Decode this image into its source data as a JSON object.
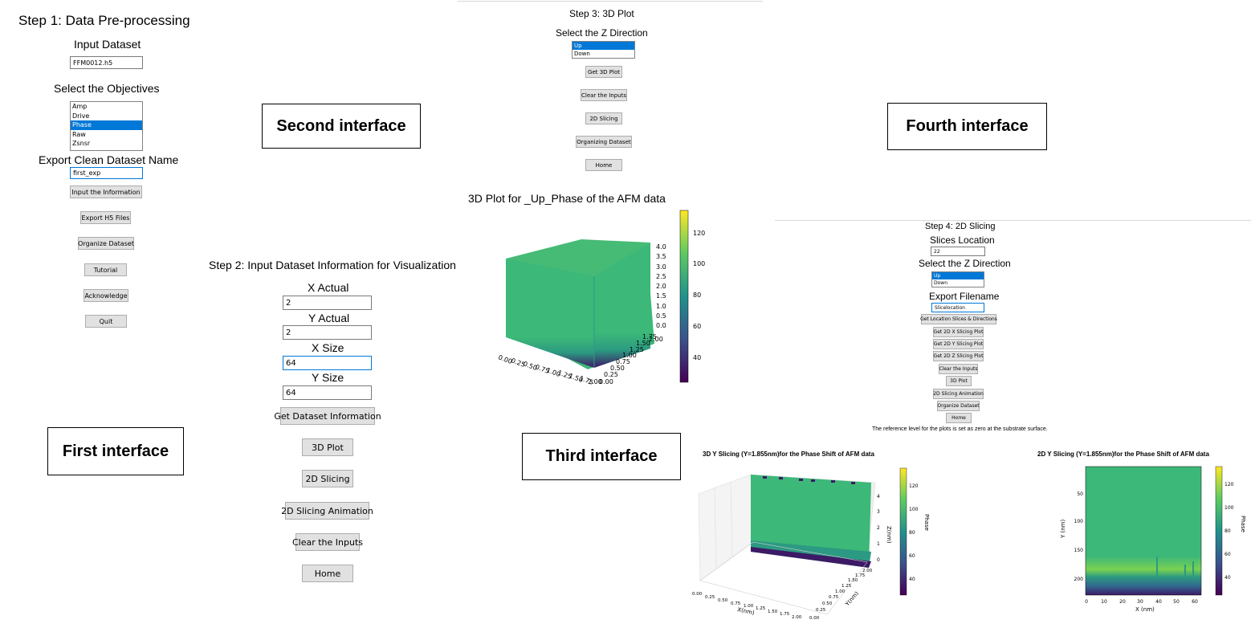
{
  "colors": {
    "viridis_low": "#440154",
    "viridis_mid": "#21918c",
    "viridis_high": "#fde725",
    "plot_green": "#3cb878",
    "selection": "#0078d7"
  },
  "callouts": {
    "first": "First interface",
    "second": "Second interface",
    "third": "Third interface",
    "fourth": "Fourth interface"
  },
  "first": {
    "title": "Step 1: Data Pre-processing",
    "input_dataset_label": "Input Dataset",
    "input_dataset_value": "FFM0012.h5",
    "objectives_label": "Select the Objectives",
    "objectives": [
      "Amp",
      "Drive",
      "Phase",
      "Raw",
      "Zsnsr"
    ],
    "objectives_selected": "Phase",
    "export_label": "Export Clean Dataset Name",
    "export_value": "first_exp",
    "buttons": {
      "input_info": "Input the Information",
      "export_h5": "Export H5 Files",
      "organize": "Organize Dataset",
      "tutorial": "Tutorial",
      "acknowledge": "Acknowledge",
      "quit": "Quit"
    }
  },
  "second": {
    "title": "Step 2: Input Dataset Information for Visualization",
    "x_actual_label": "X Actual",
    "x_actual_value": "2",
    "y_actual_label": "Y Actual",
    "y_actual_value": "2",
    "x_size_label": "X Size",
    "x_size_value": "64",
    "y_size_label": "Y Size",
    "y_size_value": "64",
    "buttons": {
      "get_info": "Get Dataset Information",
      "plot3d": "3D Plot",
      "slicing2d": "2D Slicing",
      "animation": "2D Slicing Animation",
      "clear": "Clear the Inputs",
      "home": "Home"
    }
  },
  "third": {
    "title": "Step 3: 3D Plot",
    "direction_label": "Select the Z Direction",
    "directions": [
      "Up",
      "Down"
    ],
    "direction_selected": "Up",
    "buttons": {
      "get3d": "Get 3D Plot",
      "clear": "Clear the Inputs",
      "slicing": "2D Slicing",
      "organize": "Organizing Dataset",
      "home": "Home"
    },
    "plot_title": "3D Plot for _Up_Phase of the AFM data",
    "z_ticks": [
      "4.0",
      "3.5",
      "3.0",
      "2.5",
      "2.0",
      "1.5",
      "1.0",
      "0.5",
      "0.0"
    ],
    "x_ticks": [
      "0.00",
      "0.25",
      "0.50",
      "0.75",
      "1.00",
      "1.25",
      "1.50",
      "1.75",
      "2.00"
    ],
    "y_ticks": [
      "0.00",
      "0.25",
      "0.50",
      "0.75",
      "1.00",
      "1.25",
      "1.50",
      "1.75",
      "2.00"
    ],
    "colorbar_ticks": [
      "120",
      "100",
      "80",
      "60",
      "40"
    ]
  },
  "fourth": {
    "title": "Step 4: 2D Slicing",
    "slices_label": "Slices Location",
    "slices_value": "22",
    "direction_label": "Select the Z Direction",
    "directions": [
      "Up",
      "Down"
    ],
    "direction_selected": "Up",
    "export_label": "Export Filename",
    "export_value": "Slicelocation",
    "buttons": {
      "get_location": "Get Location Slices & Directions",
      "x_plot": "Get 2D X Slicing Plot",
      "y_plot": "Get 2D Y Slicing Plot",
      "z_plot": "Get 2D Z Slicing Plot",
      "clear": "Clear the Inputs",
      "plot3d": "3D Plot",
      "animation": "2D Slicing Animation",
      "organize": "Organize Dataset",
      "home": "Home"
    },
    "note": "The reference level for the plots is set as zero at the substrate surface.",
    "plot3d_title": "3D Y Slicing (Y=1.855nm)for the Phase Shift of AFM data",
    "plot3d_zlabel": "Z(nm)",
    "plot3d_xlabel": "X(nm)",
    "plot3d_ylabel": "Y(nm)",
    "plot3d_colorbar_label": "Phase",
    "plot3d_z_ticks": [
      "4",
      "3",
      "2",
      "1",
      "0"
    ],
    "plot3d_x_ticks": [
      "0.00",
      "0.25",
      "0.50",
      "0.75",
      "1.00",
      "1.25",
      "1.50",
      "1.75",
      "2.00"
    ],
    "plot3d_y_ticks": [
      "0.00",
      "0.25",
      "0.50",
      "0.75",
      "1.00",
      "1.25",
      "1.50",
      "1.75",
      "2.00"
    ],
    "plot3d_colorbar_ticks": [
      "120",
      "100",
      "80",
      "60",
      "40"
    ],
    "plot2d_title": "2D Y Slicing (Y=1.855nm)for the Phase Shift of AFM data",
    "plot2d_xlabel": "X (nm)",
    "plot2d_ylabel": "Y (nm)",
    "plot2d_colorbar_label": "Phase",
    "plot2d_x_ticks": [
      "0",
      "10",
      "20",
      "30",
      "40",
      "50",
      "60"
    ],
    "plot2d_y_ticks": [
      "50",
      "100",
      "150",
      "200"
    ],
    "plot2d_colorbar_ticks": [
      "120",
      "100",
      "80",
      "60",
      "40"
    ]
  }
}
